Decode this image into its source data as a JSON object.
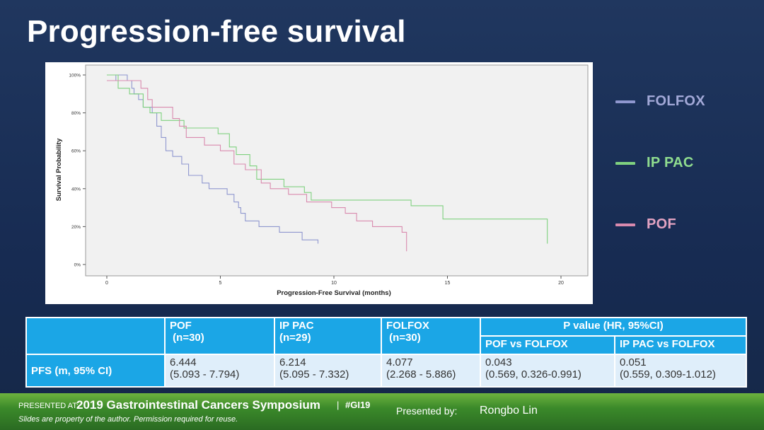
{
  "slide": {
    "title": "Progression-free survival"
  },
  "chart_data": {
    "type": "line",
    "xlabel": "Progression-Free Survival (months)",
    "ylabel": "Survival Probability",
    "xlim": [
      0,
      20
    ],
    "ylim": [
      0,
      100
    ],
    "x_ticks": [
      "0",
      "5",
      "10",
      "15",
      "20"
    ],
    "x_tick_values": [
      0,
      5,
      10,
      15,
      20
    ],
    "y_ticks": [
      "0%",
      "20%",
      "40%",
      "60%",
      "80%",
      "100%"
    ],
    "y_tick_values": [
      0,
      20,
      40,
      60,
      80,
      100
    ],
    "grid": false,
    "legend_position": "right",
    "series": [
      {
        "name": "FOLFOX",
        "color": "#8f97cf",
        "points": [
          [
            0,
            97
          ],
          [
            0.4,
            97
          ],
          [
            0.4,
            100
          ],
          [
            0.9,
            100
          ],
          [
            0.9,
            97
          ],
          [
            1.1,
            97
          ],
          [
            1.1,
            93
          ],
          [
            1.2,
            93
          ],
          [
            1.2,
            90
          ],
          [
            1.4,
            90
          ],
          [
            1.4,
            87
          ],
          [
            1.6,
            87
          ],
          [
            1.6,
            83
          ],
          [
            2.0,
            83
          ],
          [
            2.0,
            80
          ],
          [
            2.2,
            80
          ],
          [
            2.2,
            73
          ],
          [
            2.4,
            73
          ],
          [
            2.4,
            67
          ],
          [
            2.6,
            67
          ],
          [
            2.6,
            60
          ],
          [
            2.9,
            60
          ],
          [
            2.9,
            57
          ],
          [
            3.3,
            57
          ],
          [
            3.3,
            53
          ],
          [
            3.6,
            53
          ],
          [
            3.6,
            47
          ],
          [
            4.2,
            47
          ],
          [
            4.2,
            43
          ],
          [
            4.5,
            43
          ],
          [
            4.5,
            40
          ],
          [
            5.3,
            40
          ],
          [
            5.3,
            37
          ],
          [
            5.6,
            37
          ],
          [
            5.6,
            33
          ],
          [
            5.8,
            33
          ],
          [
            5.8,
            30
          ],
          [
            5.9,
            30
          ],
          [
            5.9,
            27
          ],
          [
            6.1,
            27
          ],
          [
            6.1,
            23
          ],
          [
            6.7,
            23
          ],
          [
            6.7,
            20
          ],
          [
            7.6,
            20
          ],
          [
            7.6,
            17
          ],
          [
            8.6,
            17
          ],
          [
            8.6,
            13
          ],
          [
            9.3,
            13
          ],
          [
            9.3,
            11
          ]
        ]
      },
      {
        "name": "IP PAC",
        "color": "#7fd17f",
        "points": [
          [
            0,
            100
          ],
          [
            0.5,
            100
          ],
          [
            0.5,
            93
          ],
          [
            1.0,
            93
          ],
          [
            1.0,
            90
          ],
          [
            1.6,
            90
          ],
          [
            1.6,
            83
          ],
          [
            1.9,
            83
          ],
          [
            1.9,
            80
          ],
          [
            2.4,
            80
          ],
          [
            2.4,
            76
          ],
          [
            3.4,
            76
          ],
          [
            3.4,
            72
          ],
          [
            4.9,
            72
          ],
          [
            4.9,
            69
          ],
          [
            5.4,
            69
          ],
          [
            5.4,
            62
          ],
          [
            5.7,
            62
          ],
          [
            5.7,
            58
          ],
          [
            6.3,
            58
          ],
          [
            6.3,
            52
          ],
          [
            6.6,
            52
          ],
          [
            6.6,
            45
          ],
          [
            7.8,
            45
          ],
          [
            7.8,
            41
          ],
          [
            8.7,
            41
          ],
          [
            8.7,
            38
          ],
          [
            9.0,
            38
          ],
          [
            9.0,
            34
          ],
          [
            13.4,
            34
          ],
          [
            13.4,
            31
          ],
          [
            14.8,
            31
          ],
          [
            14.8,
            24
          ],
          [
            19.4,
            24
          ],
          [
            19.4,
            11
          ]
        ]
      },
      {
        "name": "POF",
        "color": "#d98aae",
        "points": [
          [
            0,
            97
          ],
          [
            1.5,
            97
          ],
          [
            1.5,
            93
          ],
          [
            1.8,
            93
          ],
          [
            1.8,
            87
          ],
          [
            2.0,
            87
          ],
          [
            2.0,
            83
          ],
          [
            2.9,
            83
          ],
          [
            2.9,
            77
          ],
          [
            3.2,
            77
          ],
          [
            3.2,
            73
          ],
          [
            3.5,
            73
          ],
          [
            3.5,
            67
          ],
          [
            4.3,
            67
          ],
          [
            4.3,
            63
          ],
          [
            5.0,
            63
          ],
          [
            5.0,
            60
          ],
          [
            5.6,
            60
          ],
          [
            5.6,
            53
          ],
          [
            6.1,
            53
          ],
          [
            6.1,
            50
          ],
          [
            6.8,
            50
          ],
          [
            6.8,
            43
          ],
          [
            7.2,
            43
          ],
          [
            7.2,
            40
          ],
          [
            8.0,
            40
          ],
          [
            8.0,
            37
          ],
          [
            8.8,
            37
          ],
          [
            8.8,
            33
          ],
          [
            9.9,
            33
          ],
          [
            9.9,
            30
          ],
          [
            10.5,
            30
          ],
          [
            10.5,
            27
          ],
          [
            11.0,
            27
          ],
          [
            11.0,
            23
          ],
          [
            11.7,
            23
          ],
          [
            11.7,
            20
          ],
          [
            13.0,
            20
          ],
          [
            13.0,
            17
          ],
          [
            13.2,
            17
          ],
          [
            13.2,
            7
          ]
        ]
      }
    ]
  },
  "table": {
    "headers": {
      "pof": [
        "POF",
        " (n=30)"
      ],
      "ippac": [
        "IP PAC",
        "(n=29)"
      ],
      "folfox": [
        "FOLFOX",
        " (n=30)"
      ],
      "pvalue": "P value (HR, 95%CI)",
      "pof_vs": "POF vs FOLFOX",
      "ippac_vs": "IP PAC vs FOLFOX"
    },
    "row": {
      "label": "PFS (m, 95% CI)",
      "pof": [
        "6.444",
        "(5.093 - 7.794)"
      ],
      "ippac": [
        "6.214",
        "(5.095 - 7.332)"
      ],
      "folfox": [
        "4.077",
        "(2.268 - 5.886)"
      ],
      "pof_vs": [
        "0.043",
        "(0.569, 0.326-0.991)"
      ],
      "ippac_vs": [
        "0.051",
        "(0.559, 0.309-1.012)"
      ]
    }
  },
  "footer": {
    "presented_at": "PRESENTED AT:",
    "symposium": "2019 Gastrointestinal Cancers Symposium",
    "separator": "|",
    "hashtag": "#GI19",
    "rights": "Slides are property of the author. Permission required for reuse.",
    "presented_by": "Presented by:",
    "presenter": "Rongbo Lin"
  }
}
